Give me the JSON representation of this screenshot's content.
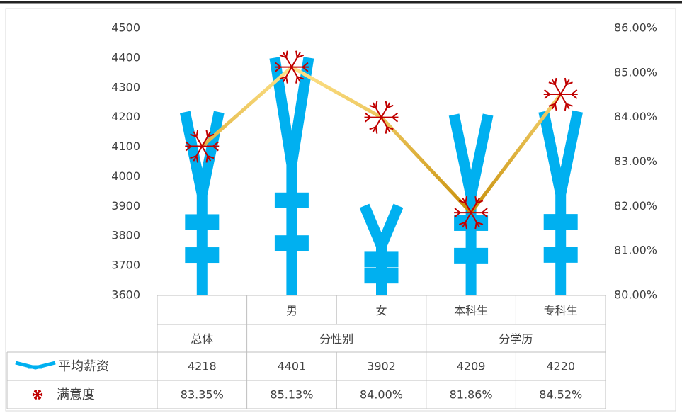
{
  "chart_data": {
    "type": "combo",
    "categories": [
      null,
      "男",
      "女",
      "本科生",
      "专科生"
    ],
    "category_groups": [
      "总体",
      "分性别",
      "分性别",
      "分学历",
      "分学历"
    ],
    "series": [
      {
        "name": "平均薪资",
        "type": "bar",
        "color": "#00b0f0",
        "values": [
          4218,
          4401,
          3902,
          4209,
          4220
        ]
      },
      {
        "name": "满意度",
        "type": "line",
        "axis": "y2",
        "color": "#e6b422",
        "marker_color": "#c00000",
        "values": [
          83.35,
          85.13,
          84.0,
          81.86,
          84.52
        ],
        "value_labels": [
          "83.35%",
          "85.13%",
          "84.00%",
          "81.86%",
          "84.52%"
        ]
      }
    ],
    "ylim": [
      3600,
      4500
    ],
    "yticks": [
      3600,
      3700,
      3800,
      3900,
      4000,
      4100,
      4200,
      4300,
      4400,
      4500
    ],
    "y2lim": [
      80,
      86
    ],
    "y2ticks": [
      {
        "value": 80,
        "label": "80.00%"
      },
      {
        "value": 81,
        "label": "81.00%"
      },
      {
        "value": 82,
        "label": "82.00%"
      },
      {
        "value": 83,
        "label": "83.00%"
      },
      {
        "value": 84,
        "label": "84.00%"
      },
      {
        "value": 85,
        "label": "85.00%"
      },
      {
        "value": 86,
        "label": "86.00%"
      }
    ],
    "grid": false,
    "data_table": true
  }
}
